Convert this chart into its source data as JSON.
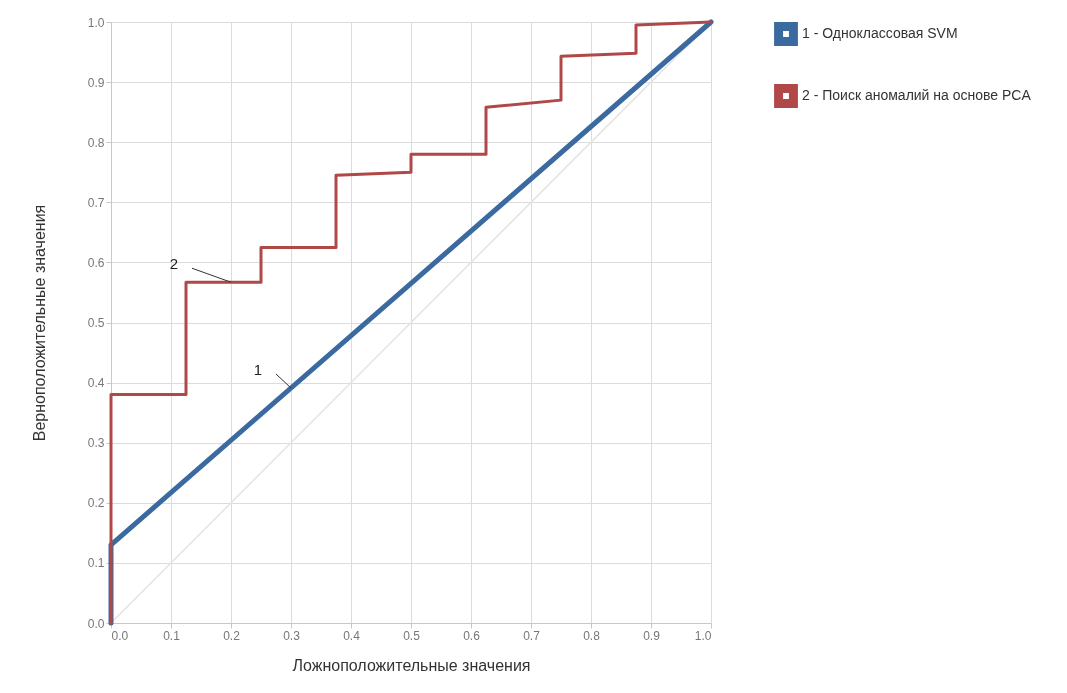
{
  "chart_data": {
    "type": "line",
    "xlabel": "Ложноположительные значения",
    "ylabel": "Верноположительные значения",
    "xlim": [
      0,
      1
    ],
    "ylim": [
      0,
      1
    ],
    "xticks": [
      {
        "value": 0,
        "label": "0.0"
      },
      {
        "value": 0.1,
        "label": "0.1"
      },
      {
        "value": 0.2,
        "label": "0.2"
      },
      {
        "value": 0.3,
        "label": "0.3"
      },
      {
        "value": 0.4,
        "label": "0.4"
      },
      {
        "value": 0.5,
        "label": "0.5"
      },
      {
        "value": 0.6,
        "label": "0.6"
      },
      {
        "value": 0.7,
        "label": "0.7"
      },
      {
        "value": 0.8,
        "label": "0.8"
      },
      {
        "value": 0.9,
        "label": "0.9"
      },
      {
        "value": 1,
        "label": "1.0"
      }
    ],
    "yticks": [
      {
        "value": 0,
        "label": "0.0"
      },
      {
        "value": 0.1,
        "label": "0.1"
      },
      {
        "value": 0.2,
        "label": "0.2"
      },
      {
        "value": 0.3,
        "label": "0.3"
      },
      {
        "value": 0.4,
        "label": "0.4"
      },
      {
        "value": 0.5,
        "label": "0.5"
      },
      {
        "value": 0.6,
        "label": "0.6"
      },
      {
        "value": 0.7,
        "label": "0.7"
      },
      {
        "value": 0.8,
        "label": "0.8"
      },
      {
        "value": 0.9,
        "label": "0.9"
      },
      {
        "value": 1,
        "label": "1.0"
      }
    ],
    "grid": true,
    "legend": "top right",
    "marker": "none",
    "line_style": "solid",
    "series": [
      {
        "color": "#e3e3e3",
        "x": [
          0,
          1
        ],
        "values": [
          0,
          1
        ]
      },
      {
        "name": "1 - Одноклассовая SVM",
        "color": "#3b6aa0",
        "x": [
          0,
          0,
          1
        ],
        "values": [
          0,
          0.13,
          1
        ]
      },
      {
        "name": "2 - Поиск аномалий на основе PCA",
        "color": "#b04848",
        "x": [
          0,
          0,
          0.125,
          0.125,
          0.25,
          0.25,
          0.375,
          0.375,
          0.5,
          0.5,
          0.625,
          0.625,
          0.75,
          0.75,
          0.875,
          0.875,
          1
        ],
        "values": [
          0,
          0.38,
          0.38,
          0.567,
          0.567,
          0.625,
          0.625,
          0.745,
          0.75,
          0.78,
          0.78,
          0.858,
          0.87,
          0.943,
          0.948,
          0.995,
          1
        ]
      }
    ],
    "annotations": [
      {
        "text": "2",
        "x": 0.2,
        "y": 0.567
      },
      {
        "text": "1",
        "x": 0.3,
        "y": 0.391
      }
    ]
  }
}
